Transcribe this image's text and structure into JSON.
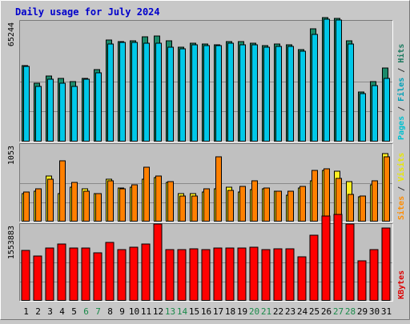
{
  "chart_data": {
    "type": "bar",
    "title": "Daily usage for July 2024",
    "categories": [
      "1",
      "2",
      "3",
      "4",
      "5",
      "6",
      "7",
      "8",
      "9",
      "10",
      "11",
      "12",
      "13",
      "14",
      "15",
      "16",
      "17",
      "18",
      "19",
      "20",
      "21",
      "22",
      "23",
      "24",
      "25",
      "26",
      "27",
      "28",
      "29",
      "30",
      "31"
    ],
    "weekend_days": [
      "6",
      "7",
      "13",
      "14",
      "20",
      "21",
      "27",
      "28"
    ],
    "panels": [
      {
        "id": "hits",
        "ymax_label": "65244",
        "ymax": 65244,
        "ylabel_parts": [
          {
            "text": "Pages",
            "color": "#00c0d0"
          },
          {
            "text": " / ",
            "color": "#333333"
          },
          {
            "text": "Files",
            "color": "#00a0b8"
          },
          {
            "text": " / ",
            "color": "#333333"
          },
          {
            "text": "Hits",
            "color": "#1b7a5f"
          }
        ],
        "series": [
          {
            "name": "Hits",
            "color": "#1b8a6a",
            "values": [
              41200,
              31500,
              35300,
              34000,
              32200,
              34300,
              38700,
              55000,
              54000,
              54500,
              56800,
              57000,
              54600,
              51200,
              53000,
              52800,
              52100,
              53800,
              53800,
              53100,
              51900,
              52700,
              52300,
              49600,
              61100,
              66900,
              66600,
              54400,
              26900,
              32600,
              39800
            ]
          },
          {
            "name": "Files",
            "color": "#00c8e8",
            "values": [
              40400,
              29600,
              33700,
              31600,
              29600,
              33500,
              37300,
              52800,
              53400,
              53700,
              53300,
              53000,
              51200,
              50300,
              52100,
              51900,
              51700,
              53100,
              52400,
              52300,
              50900,
              51600,
              51300,
              48900,
              58100,
              66300,
              65500,
              52800,
              25900,
              30200,
              34000
            ]
          }
        ]
      },
      {
        "id": "visits",
        "ymax_label": "1053",
        "ymax": 1053,
        "ylabel_parts": [
          {
            "text": "Sites",
            "color": "#ff8c00"
          },
          {
            "text": " / ",
            "color": "#333333"
          },
          {
            "text": "Visits",
            "color": "#e8e800"
          }
        ],
        "series": [
          {
            "name": "Sites",
            "color": "#ffee22",
            "values": [
              383,
              417,
              617,
              383,
              467,
              450,
              383,
              575,
              458,
              467,
              575,
              600,
              533,
              375,
              383,
              400,
              450,
              467,
              400,
              433,
              450,
              408,
              358,
              458,
              550,
              700,
              683,
              542,
              333,
              500,
              925
            ]
          },
          {
            "name": "Visits",
            "color": "#ff8000",
            "values": [
              405,
              440,
              575,
              825,
              533,
              408,
              383,
              558,
              440,
              500,
              742,
              617,
              542,
              350,
              350,
              450,
              875,
              425,
              483,
              550,
              458,
              417,
              417,
              475,
              700,
              717,
              583,
              367,
              350,
              550,
              883
            ]
          }
        ]
      },
      {
        "id": "kbytes",
        "ymax_label": "1553883",
        "ymax": 1553883,
        "ylabel_parts": [
          {
            "text": "KBytes",
            "color": "#dd0000"
          }
        ],
        "series": [
          {
            "name": "KBytes",
            "color": "#ff0000",
            "values": [
              1017000,
              903000,
              1067000,
              1142000,
              1067000,
              1067000,
              979000,
              1180000,
              1042000,
              1092000,
              1155000,
              1556000,
              1042000,
              1042000,
              1054000,
              1029000,
              1067000,
              1067000,
              1067000,
              1079000,
              1042000,
              1054000,
              1054000,
              891000,
              1330000,
              1717000,
              1743000,
              1556000,
              816000,
              1042000,
              1468000
            ]
          }
        ]
      }
    ]
  }
}
